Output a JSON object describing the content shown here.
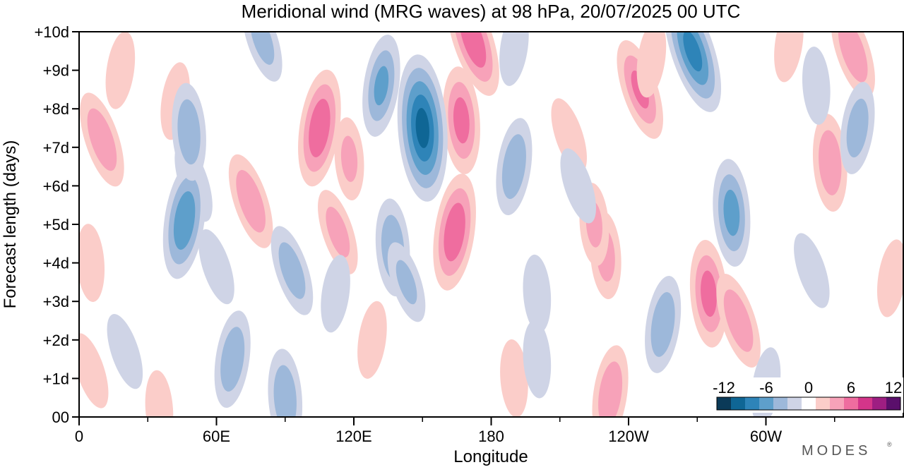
{
  "chart_data": {
    "type": "heatmap",
    "title": "Meridional wind (MRG waves) at  98 hPa,  20/07/2025  00 UTC",
    "xlabel": "Longitude",
    "ylabel": "Forecast length (days)",
    "x_ticks": [
      {
        "lon": 0,
        "label": "0"
      },
      {
        "lon": 60,
        "label": "60E"
      },
      {
        "lon": 120,
        "label": "120E"
      },
      {
        "lon": 180,
        "label": "180"
      },
      {
        "lon": 240,
        "label": "120W"
      },
      {
        "lon": 300,
        "label": "60W"
      }
    ],
    "x_minor_ticks": [
      30,
      90,
      150,
      210,
      270,
      330
    ],
    "xlim": [
      0,
      360
    ],
    "y_ticks": [
      {
        "day": 0,
        "label": "00"
      },
      {
        "day": 1,
        "label": "+1d"
      },
      {
        "day": 2,
        "label": "+2d"
      },
      {
        "day": 3,
        "label": "+3d"
      },
      {
        "day": 4,
        "label": "+4d"
      },
      {
        "day": 5,
        "label": "+5d"
      },
      {
        "day": 6,
        "label": "+6d"
      },
      {
        "day": 7,
        "label": "+7d"
      },
      {
        "day": 8,
        "label": "+8d"
      },
      {
        "day": 9,
        "label": "+9d"
      },
      {
        "day": 10,
        "label": "+10d"
      }
    ],
    "ylim": [
      0,
      10
    ],
    "colorbar": {
      "levels": [
        -12,
        -10,
        -8,
        -6,
        -4,
        -2,
        0,
        2,
        4,
        6,
        8,
        10,
        12
      ],
      "colors": [
        "#0b3a58",
        "#0f6695",
        "#2e84b8",
        "#5e9fcb",
        "#9db8da",
        "#cfd4e6",
        "#ffffff",
        "#fbcdc9",
        "#f7a2b9",
        "#ef6d9f",
        "#d4358a",
        "#9e1e82",
        "#5a0f6b"
      ],
      "tick_labels": [
        {
          "value": -12,
          "label": "-12"
        },
        {
          "value": -6,
          "label": "-6"
        },
        {
          "value": 0,
          "label": "0"
        },
        {
          "value": 6,
          "label": "6"
        },
        {
          "value": 12,
          "label": "12"
        }
      ]
    },
    "features": [
      {
        "lon": 10,
        "day": 7.2,
        "value": 4.5
      },
      {
        "lon": 18,
        "day": 9.0,
        "value": 2.5
      },
      {
        "lon": 5,
        "day": 4.0,
        "value": 2.5
      },
      {
        "lon": 5,
        "day": 1.2,
        "value": 2.5
      },
      {
        "lon": 42,
        "day": 8.2,
        "value": 2.5
      },
      {
        "lon": 35,
        "day": 0.2,
        "value": 2.5
      },
      {
        "lon": 75,
        "day": 5.6,
        "value": 4.5
      },
      {
        "lon": 105,
        "day": 7.5,
        "value": 6.5
      },
      {
        "lon": 118,
        "day": 6.7,
        "value": 3.0
      },
      {
        "lon": 113,
        "day": 4.8,
        "value": 3.5
      },
      {
        "lon": 128,
        "day": 2.0,
        "value": 2.5
      },
      {
        "lon": 167,
        "day": 7.7,
        "value": 5.5
      },
      {
        "lon": 172,
        "day": 9.8,
        "value": 6.5
      },
      {
        "lon": 164,
        "day": 4.8,
        "value": 6.5
      },
      {
        "lon": 190,
        "day": 1.0,
        "value": 2.5
      },
      {
        "lon": 214,
        "day": 7.3,
        "value": 2.5
      },
      {
        "lon": 232,
        "day": 0.6,
        "value": 4.5
      },
      {
        "lon": 230,
        "day": 4.2,
        "value": 3.5
      },
      {
        "lon": 245,
        "day": 8.5,
        "value": 5.0
      },
      {
        "lon": 250,
        "day": 9.3,
        "value": 2.5
      },
      {
        "lon": 275,
        "day": 3.2,
        "value": 5.5
      },
      {
        "lon": 288,
        "day": 2.5,
        "value": 4.5
      },
      {
        "lon": 310,
        "day": 9.7,
        "value": 2.5
      },
      {
        "lon": 328,
        "day": 6.6,
        "value": 4.5
      },
      {
        "lon": 338,
        "day": 9.5,
        "value": 4.5
      },
      {
        "lon": 355,
        "day": 3.6,
        "value": 2.5
      },
      {
        "lon": 225,
        "day": 5.0,
        "value": 3.0
      },
      {
        "lon": 50,
        "day": 6.1,
        "value": -3.0
      },
      {
        "lon": 46,
        "day": 5.1,
        "value": -6.5
      },
      {
        "lon": 48,
        "day": 7.4,
        "value": -4.5
      },
      {
        "lon": 80,
        "day": 9.8,
        "value": -3.5
      },
      {
        "lon": 132,
        "day": 8.6,
        "value": -5.0
      },
      {
        "lon": 150,
        "day": 7.5,
        "value": -9.5
      },
      {
        "lon": 93,
        "day": 3.8,
        "value": -4.0
      },
      {
        "lon": 112,
        "day": 3.2,
        "value": -2.5
      },
      {
        "lon": 137,
        "day": 4.4,
        "value": -4.5
      },
      {
        "lon": 143,
        "day": 3.5,
        "value": -3.0
      },
      {
        "lon": 67,
        "day": 1.5,
        "value": -4.5
      },
      {
        "lon": 90,
        "day": 0.5,
        "value": -4.5
      },
      {
        "lon": 20,
        "day": 1.7,
        "value": -2.5
      },
      {
        "lon": 190,
        "day": 6.5,
        "value": -4.5
      },
      {
        "lon": 200,
        "day": 3.2,
        "value": -2.5
      },
      {
        "lon": 218,
        "day": 6.0,
        "value": -2.5
      },
      {
        "lon": 255,
        "day": 2.4,
        "value": -4.5
      },
      {
        "lon": 285,
        "day": 5.3,
        "value": -5.5
      },
      {
        "lon": 268,
        "day": 9.5,
        "value": -7.5
      },
      {
        "lon": 340,
        "day": 7.5,
        "value": -4.0
      },
      {
        "lon": 322,
        "day": 8.6,
        "value": -2.5
      },
      {
        "lon": 320,
        "day": 3.8,
        "value": -2.5
      },
      {
        "lon": 300,
        "day": 0.8,
        "value": -2.5
      },
      {
        "lon": 200,
        "day": 1.5,
        "value": -2.5
      },
      {
        "lon": 60,
        "day": 3.9,
        "value": -2.5
      },
      {
        "lon": 190,
        "day": 9.6,
        "value": -2.5
      }
    ]
  },
  "branding": {
    "logo_text": "MODES"
  }
}
